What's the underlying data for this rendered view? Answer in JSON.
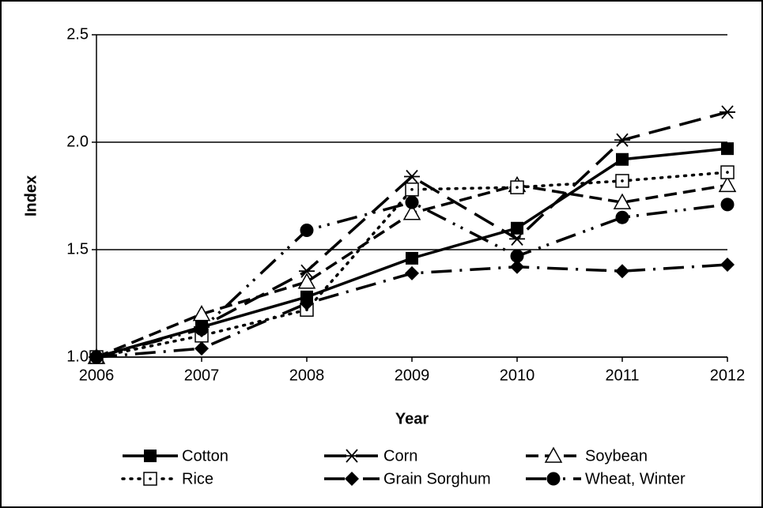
{
  "chart_data": {
    "type": "line",
    "categories": [
      "2006",
      "2007",
      "2008",
      "2009",
      "2010",
      "2011",
      "2012"
    ],
    "xlabel": "Year",
    "ylabel": "Index",
    "ylim": [
      1,
      2.5
    ],
    "yticks": [
      {
        "value": 1,
        "label": "1.0"
      },
      {
        "value": 1.5,
        "label": "1.5"
      },
      {
        "value": 2,
        "label": "2.0"
      },
      {
        "value": 2.5,
        "label": "2.5"
      }
    ],
    "grid": true,
    "legend": "bottom",
    "series": [
      {
        "name": "Cotton",
        "color": "#000000",
        "values": [
          1.0,
          1.14,
          1.28,
          1.46,
          1.6,
          1.92,
          1.97
        ]
      },
      {
        "name": "Corn",
        "color": "#000000",
        "values": [
          1.0,
          1.14,
          1.4,
          1.84,
          1.55,
          2.01,
          2.14
        ]
      },
      {
        "name": "Soybean",
        "color": "#000000",
        "values": [
          1.0,
          1.2,
          1.35,
          1.67,
          1.8,
          1.72,
          1.8
        ]
      },
      {
        "name": "Rice",
        "color": "#000000",
        "values": [
          1.0,
          1.1,
          1.22,
          1.78,
          1.79,
          1.82,
          1.86
        ]
      },
      {
        "name": "Grain Sorghum",
        "color": "#000000",
        "values": [
          1.0,
          1.04,
          1.25,
          1.39,
          1.42,
          1.4,
          1.43
        ]
      },
      {
        "name": "Wheat, Winter",
        "color": "#000000",
        "values": [
          1.0,
          1.13,
          1.59,
          1.72,
          1.47,
          1.65,
          1.71
        ]
      }
    ]
  }
}
